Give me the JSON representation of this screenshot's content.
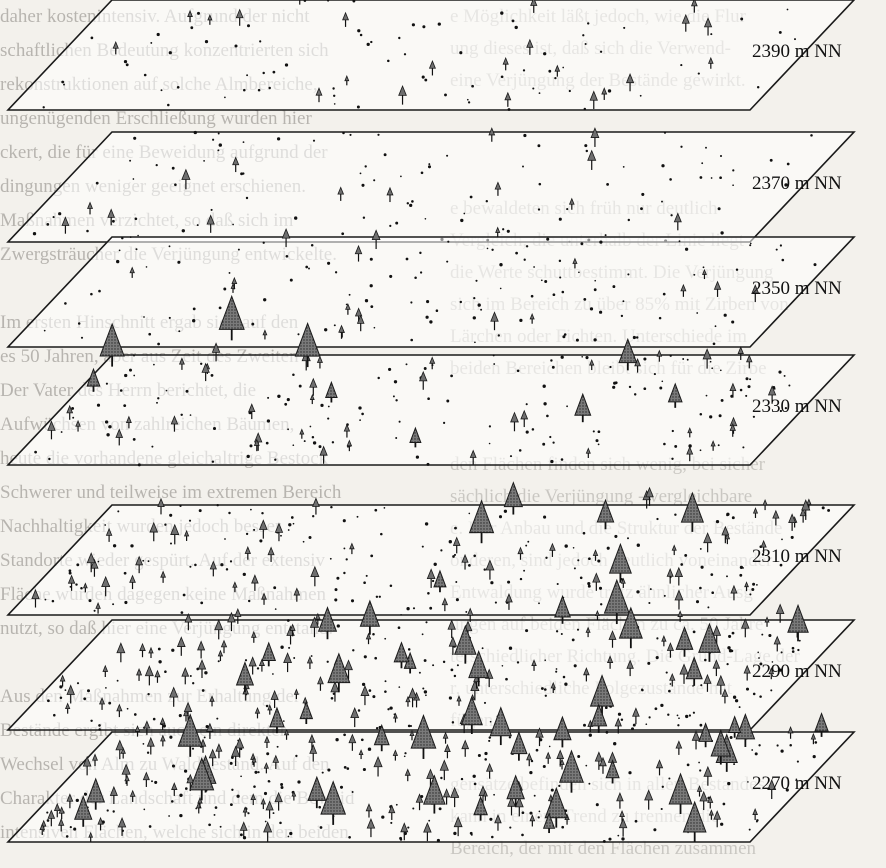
{
  "diagram": {
    "levels": [
      {
        "label": "2390 m NN",
        "trees": 0,
        "seedlings": 22,
        "dots": 80
      },
      {
        "label": "2370 m NN",
        "trees": 0,
        "seedlings": 14,
        "dots": 100
      },
      {
        "label": "2350 m NN",
        "trees": 1,
        "seedlings": 22,
        "dots": 120
      },
      {
        "label": "2330 m NN",
        "trees": 8,
        "seedlings": 40,
        "dots": 150
      },
      {
        "label": "2310 m NN",
        "trees": 6,
        "seedlings": 60,
        "dots": 170
      },
      {
        "label": "2290 m NN",
        "trees": 18,
        "seedlings": 90,
        "dots": 180
      },
      {
        "label": "2270 m NN",
        "trees": 30,
        "seedlings": 110,
        "dots": 190
      }
    ]
  },
  "background_text": {
    "left_lines": [
      "daher kostenintensiv. Aufgrund der nicht",
      "schaftlichen Bedeutung konzentrierten sich",
      "rekonstruktionen auf solche Almbereiche,",
      "ungenügenden Erschließung wurden hier",
      "ckert, die für eine Beweidung aufgrund der",
      "dingungen weniger geeignet erschienen.",
      "Maßnahmen verzichtet, so daß sich im",
      "Zwergsträucher die Verjüngung entwickelte.",
      "",
      "Im ersten Hinschnitt ergab sich auf den",
      "es 50 Jahren, aber aus Zeit des Zweiten",
      "Der Vater des Herrn berichtet, die",
      "Aufwüchsen von zahlreichen Bäumen,",
      "heute die vorhandene gleichaltrige Bestock",
      "Schwerer und teilweise im extremen Bereich",
      "Nachhaltigkeit wurden jedoch besser",
      "Standorte wieder gespürt. Auf der extensiv",
      "Fläche wurden dagegen keine Maßnahmen",
      "nutzt, so daß hier eine Verjüngung entstand.",
      "",
      "Aus den Maßnahmen zur Erhaltung der",
      "Bestände ergibt sich auch ein direkter",
      "Wechsel von Alm zu Waldbestand. Auf den",
      "Charakter der Landschaft und dem die Beweid",
      "intensiven Flächen, welche sich in den beiden"
    ],
    "right_lines": [
      "e Möglichkeit läßt jedoch, wie die Flur",
      "ung dieses ist, daß sich die Verwend-",
      "eine Verjüngung der Bestände gewirkt.",
      "",
      "",
      "",
      "e bewaldeten sich früh nur deutlich",
      "Vergleich, die unterhalb der Linie liegt",
      "die Werte schuttbestimmt. Die Verjüngung",
      "sich im Bereich zu über 85% mit Zirben von",
      "Lärchen oder Fichten. Unterschiede im",
      "beiden Bereichen bleibt sich für die Zirbe",
      "",
      "",
      "den Flächen finden sich wenig, bei sicher",
      "sächlich die Verjüngung - vergleichbare",
      "e. Der Anbau und die Struktur der Bestände",
      "onderen, sind jedoch deutlich voneinander",
      "Entwaldung wurde trotz ähnlicher Ausg",
      "ungen auf beiden Flächen zu ca. 50 Jahre",
      "terschiedlicher Richtung. Die Grund-Lage der",
      "r, unterschiedliche Folgezustände hat",
      "fügen.",
      "",
      "gensätze befinden sich in allen Bestandes-",
      "kann in einem Trend zu trennen die",
      "Bereich, der mit den Flächen zusammen"
    ]
  },
  "colors": {
    "plane_stroke": "#1a1a1a",
    "tree_fill": "#6f6f6f",
    "tree_outline": "#1a1a1a",
    "plane_fill": "#ffffff"
  }
}
